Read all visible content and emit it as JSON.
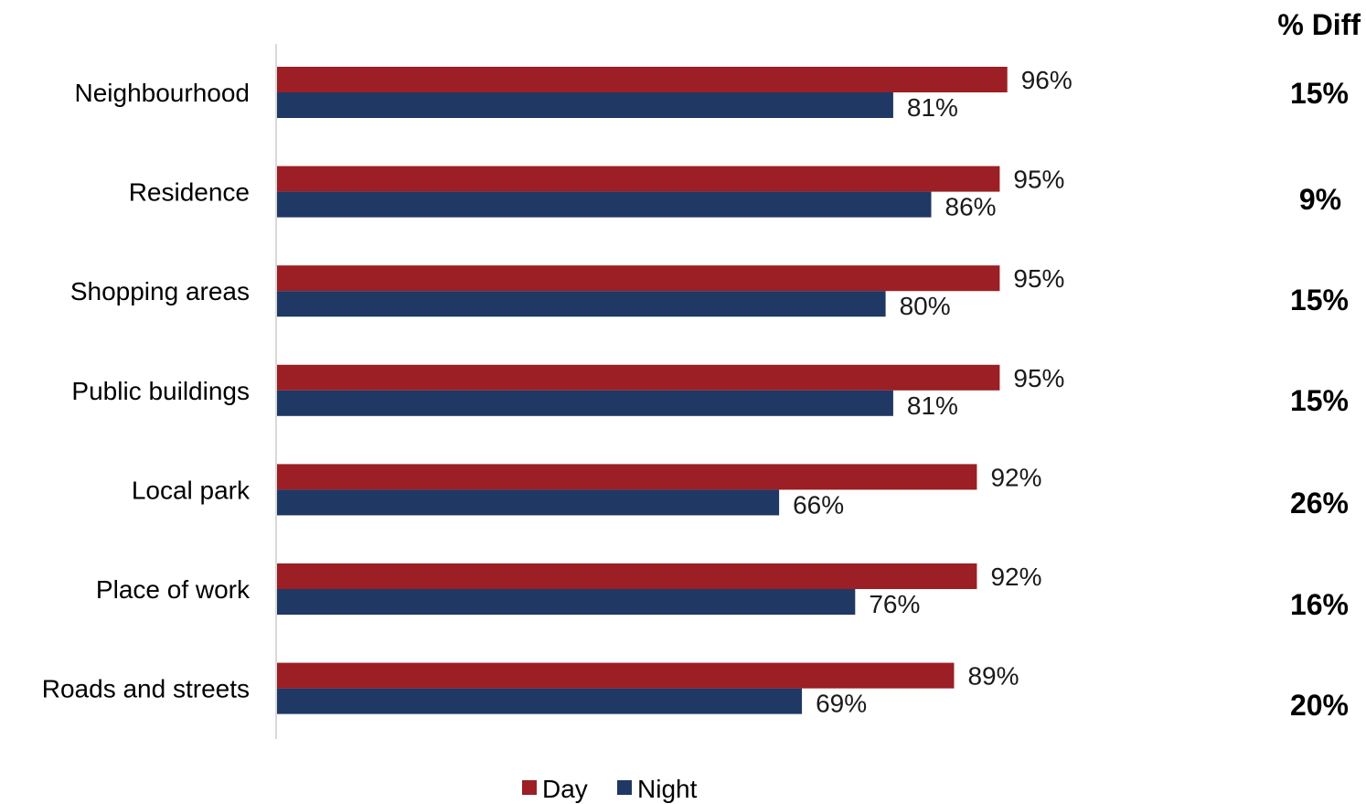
{
  "chart_data": {
    "type": "bar",
    "orientation": "horizontal",
    "categories": [
      "Neighbourhood",
      "Residence",
      "Shopping areas",
      "Public buildings",
      "Local park",
      "Place of work",
      "Roads and streets"
    ],
    "series": [
      {
        "name": "Day",
        "values": [
          96,
          95,
          95,
          95,
          92,
          92,
          89
        ],
        "labels": [
          "96%",
          "95%",
          "95%",
          "95%",
          "92%",
          "92%",
          "89%"
        ],
        "color": "#9B1F24"
      },
      {
        "name": "Night",
        "values": [
          81,
          86,
          80,
          81,
          66,
          76,
          69
        ],
        "labels": [
          "81%",
          "86%",
          "80%",
          "81%",
          "66%",
          "76%",
          "69%"
        ],
        "color": "#1F3864"
      }
    ],
    "diff_header": "% Diff",
    "diff_values": [
      "15%",
      "9%",
      "15%",
      "15%",
      "26%",
      "16%",
      "20%"
    ],
    "xlim": [
      0,
      100
    ],
    "grid": false,
    "legend_position": "bottom"
  }
}
